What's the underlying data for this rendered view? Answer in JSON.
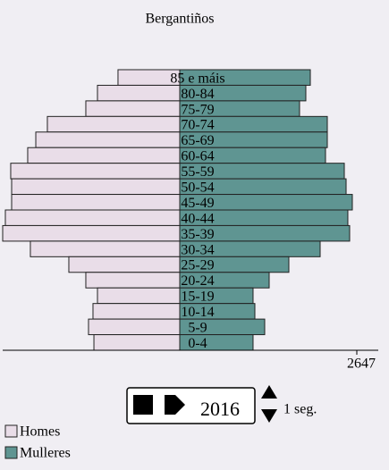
{
  "chart_data": {
    "type": "pyramid",
    "title": "Bergantiños",
    "categories": [
      "85 e máis",
      "80-84",
      "75-79",
      "70-74",
      "65-69",
      "60-64",
      "55-59",
      "50-54",
      "45-49",
      "40-44",
      "35-39",
      "30-34",
      "25-29",
      "20-24",
      "15-19",
      "10-14",
      "5-9",
      "0-4"
    ],
    "series": [
      {
        "name": "Homes",
        "color": "#e9dde8",
        "values": [
          923,
          1230,
          1404,
          1979,
          2152,
          2273,
          2527,
          2513,
          2513,
          2607,
          2647,
          2233,
          1658,
          1404,
          1230,
          1297,
          1364,
          1283
        ]
      },
      {
        "name": "Mulleres",
        "color": "#5f9592",
        "values": [
          1952,
          1885,
          1791,
          2206,
          2206,
          2179,
          2460,
          2487,
          2580,
          2513,
          2540,
          2099,
          1631,
          1337,
          1096,
          1123,
          1270,
          1096
        ]
      }
    ],
    "xlim": [
      0,
      2647
    ],
    "xticks": [
      2647
    ]
  },
  "controls": {
    "year": "2016",
    "interval": "1 seg."
  }
}
